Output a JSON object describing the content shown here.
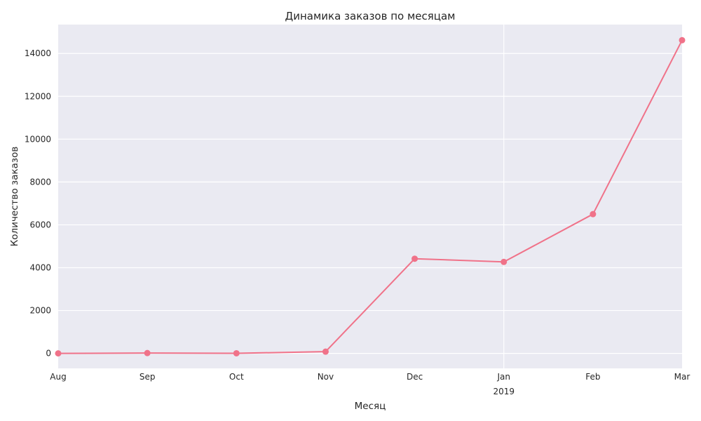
{
  "chart_data": {
    "type": "line",
    "title": "Динамика заказов по месяцам",
    "xlabel": "Месяц",
    "ylabel": "Количество заказов",
    "x": [
      "2018-08",
      "2018-09",
      "2018-10",
      "2018-11",
      "2018-12",
      "2019-01",
      "2019-02",
      "2019-03"
    ],
    "x_tick_labels": [
      "Aug",
      "Sep",
      "Oct",
      "Nov",
      "Dec",
      "Jan",
      "Feb",
      "Mar"
    ],
    "x_year_labels": [
      {
        "at": "Jan",
        "label": "2019"
      }
    ],
    "y_ticks": [
      0,
      2000,
      4000,
      6000,
      8000,
      10000,
      12000,
      14000
    ],
    "ylim": [
      -700,
      15350
    ],
    "grid": true,
    "series": [
      {
        "values": [
          0,
          15,
          5,
          80,
          4420,
          4270,
          6500,
          14620
        ],
        "color": "#f07289",
        "marker": "circle"
      }
    ]
  }
}
